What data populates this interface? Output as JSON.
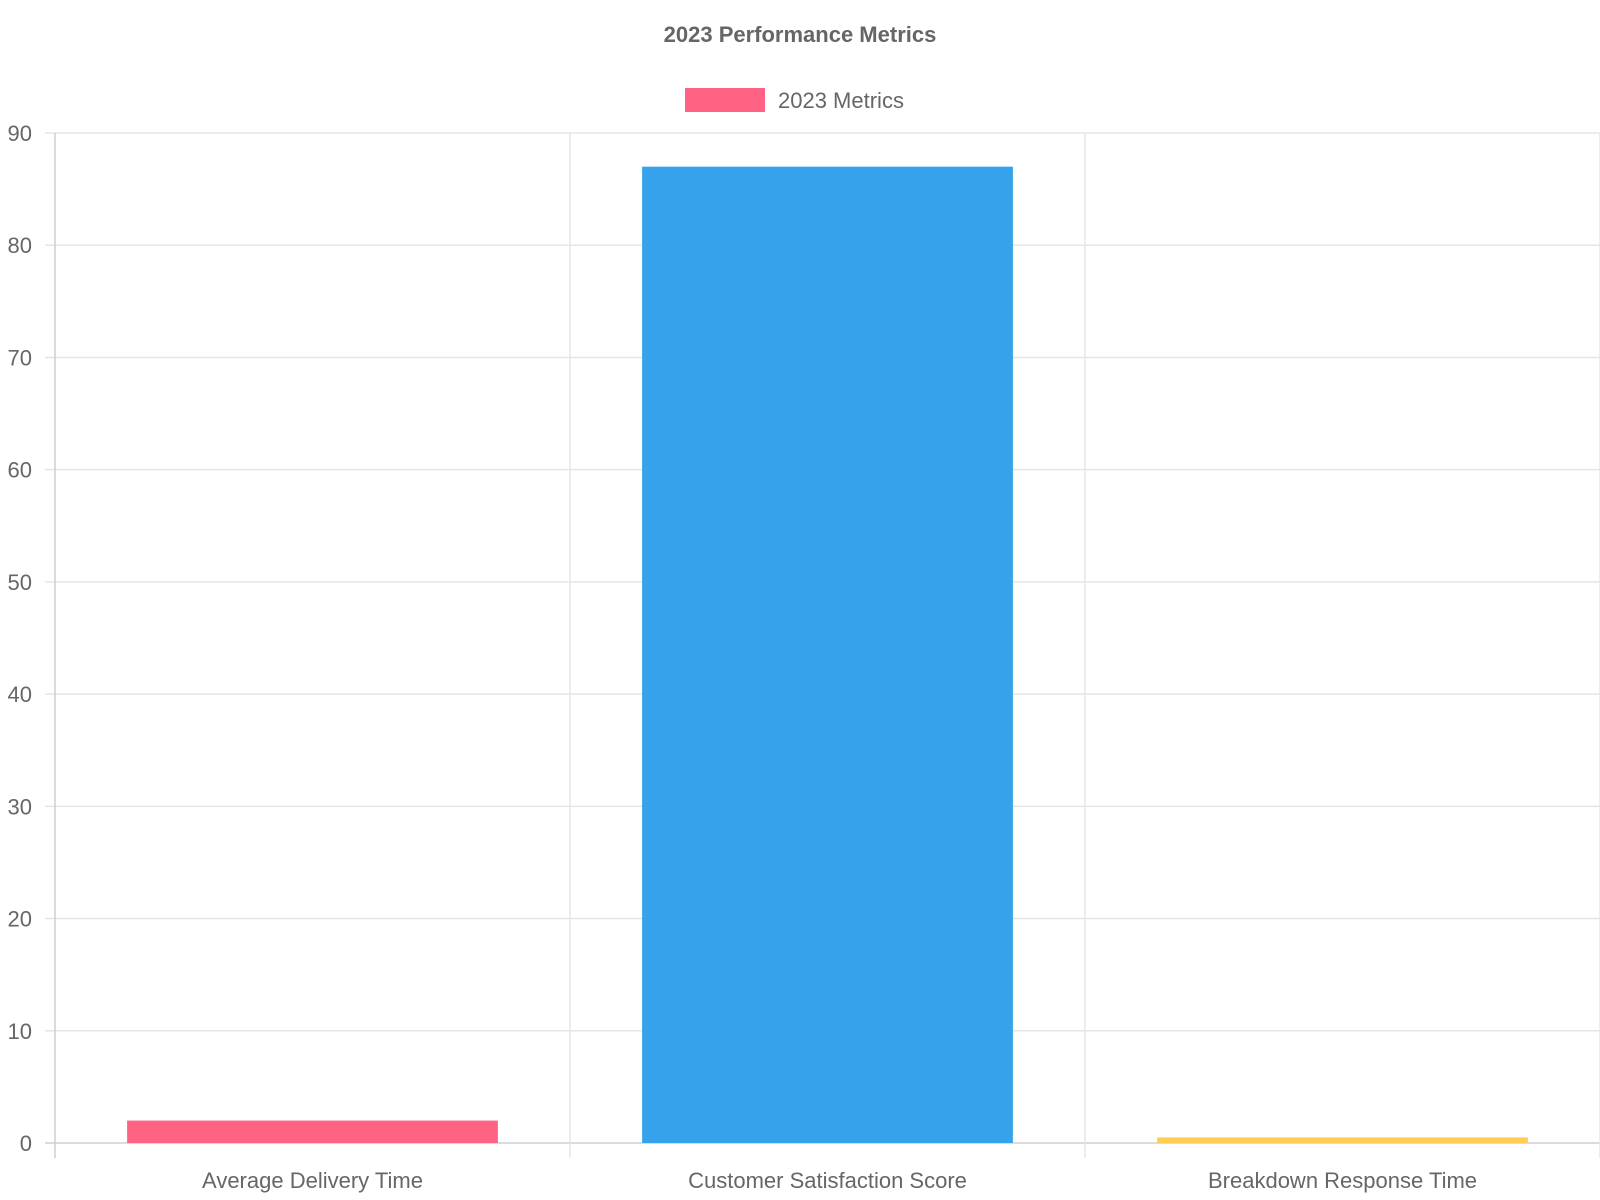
{
  "chart_data": {
    "type": "bar",
    "title": "2023 Performance Metrics",
    "categories": [
      "Average Delivery Time",
      "Customer Satisfaction Score",
      "Breakdown Response Time"
    ],
    "series": [
      {
        "name": "2023 Metrics",
        "values": [
          2,
          87,
          0.5
        ],
        "colors": [
          "#ff6384",
          "#36a2eb",
          "#ffcd56"
        ]
      }
    ],
    "legend": {
      "position": "top",
      "label": "2023 Metrics",
      "color": "#ff6384"
    },
    "ylim": [
      0,
      90
    ],
    "yticks": [
      "0",
      "10",
      "20",
      "30",
      "40",
      "50",
      "60",
      "70",
      "80",
      "90"
    ],
    "ytick_values": [
      0,
      10,
      20,
      30,
      40,
      50,
      60,
      70,
      80,
      90
    ],
    "grid": true,
    "xlabel": "",
    "ylabel": ""
  }
}
